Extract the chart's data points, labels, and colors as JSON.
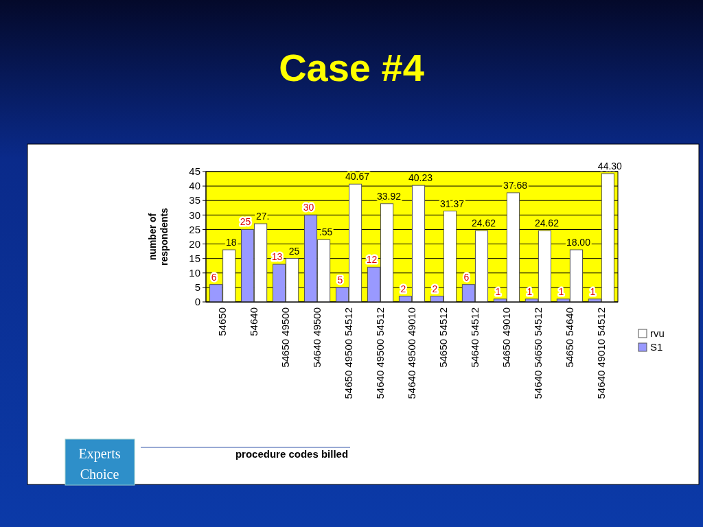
{
  "chart_data": {
    "type": "bar",
    "title": "Case #4",
    "xlabel": "procedure codes billed",
    "ylabel": "number of respondents",
    "categories": [
      "54650",
      "54640",
      "54650 49500",
      "54640 49500",
      "54650 49500 54512",
      "54640 49500 54512",
      "54640 49500 49010",
      "54650 54512",
      "54640 54512",
      "54650 49010",
      "54640 54650 54512",
      "54650 54640",
      "54640 49010 54512"
    ],
    "series": [
      {
        "name": "S1",
        "color": "#9999ff",
        "values": [
          6,
          25,
          13,
          30,
          5,
          12,
          2,
          2,
          6,
          1,
          1,
          1,
          1
        ],
        "value_labels": [
          "6",
          "25",
          "13",
          "30",
          "5",
          "12",
          "2",
          "2",
          "6",
          "1",
          "1",
          "1",
          "1"
        ]
      },
      {
        "name": "rvu",
        "color": "#ffffff",
        "values": [
          18,
          27,
          15,
          21.5,
          40.67,
          33.92,
          40.23,
          31.37,
          24.62,
          37.68,
          24.62,
          18.0,
          44.3
        ],
        "value_labels": [
          "18",
          "27.",
          null,
          null,
          "40.67",
          "33.92",
          "40.23",
          "31.37",
          "24.62",
          "37.68",
          "24.62",
          "18.00",
          "44.30"
        ]
      }
    ],
    "ylim": [
      0,
      45
    ],
    "yticks": [
      0,
      5,
      10,
      15,
      20,
      25,
      30,
      35,
      40,
      45
    ],
    "grid": "y",
    "legend": "right",
    "annotations": [
      "Experts Choice",
      {
        "text": "25",
        "x": "54650 49500",
        "y": 15
      },
      {
        "text": ".55",
        "x": "54640 49500",
        "y": 21.5
      }
    ]
  }
}
